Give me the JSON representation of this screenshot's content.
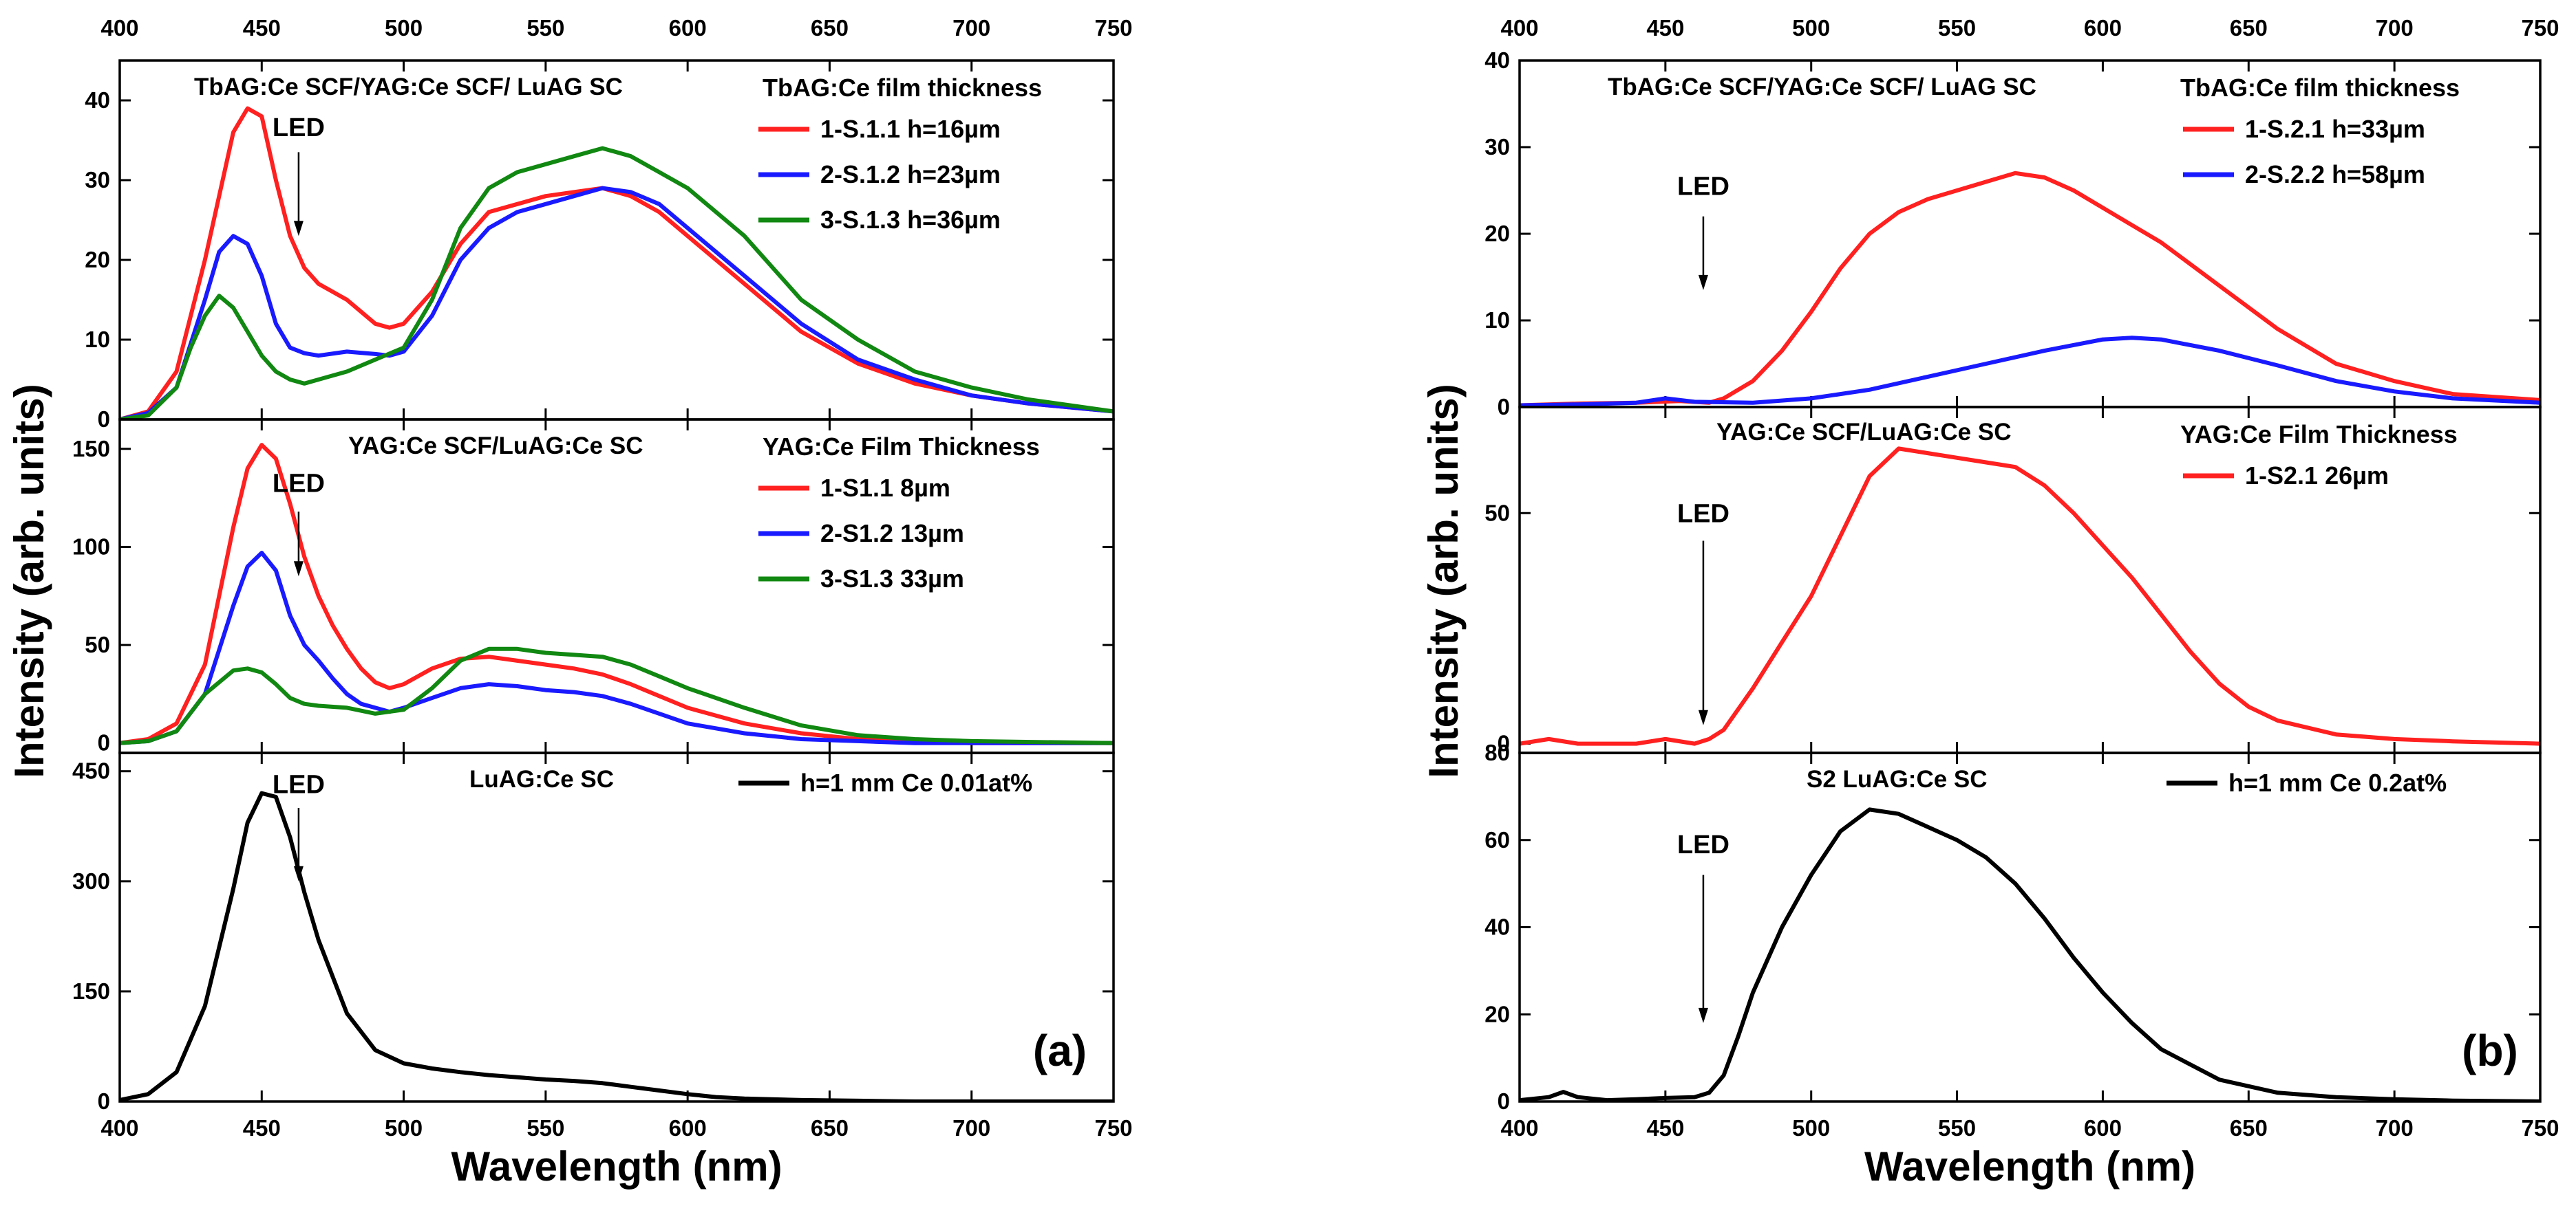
{
  "figure": {
    "xlabel": "Wavelength (nm)",
    "ylabel": "Intensity (arb. units)"
  },
  "colors": {
    "red": "#ff2020",
    "blue": "#1a1aff",
    "green": "#118811",
    "black": "#000000"
  },
  "chart_data": [
    {
      "panel": "a",
      "row": 0,
      "type": "line",
      "title": "TbAG:Ce SCF/YAG:Ce SCF/ LuAG SC",
      "legend_title": "TbAG:Ce film thickness",
      "xlim": [
        400,
        750
      ],
      "ylim": [
        0,
        45
      ],
      "xticks": [
        400,
        450,
        500,
        550,
        600,
        650,
        700,
        750
      ],
      "yticks": [
        0,
        10,
        20,
        30,
        40
      ],
      "yticklabels": [
        "0",
        "10",
        "20",
        "30",
        "40"
      ],
      "led": {
        "label": "LED",
        "x": 463,
        "y_text": 35.5,
        "y_start": 33.5,
        "y_end": 23
      },
      "series": [
        {
          "name": "1-S.1.1 h=16µm",
          "color": "red",
          "x": [
            400,
            410,
            420,
            430,
            440,
            445,
            450,
            455,
            460,
            465,
            470,
            480,
            490,
            495,
            500,
            510,
            520,
            530,
            540,
            550,
            560,
            570,
            580,
            590,
            600,
            620,
            640,
            660,
            680,
            700,
            720,
            750
          ],
          "y": [
            0,
            1,
            6,
            20,
            36,
            39,
            38,
            30,
            23,
            19,
            17,
            15,
            12,
            11.5,
            12,
            16,
            22,
            26,
            27,
            28,
            28.5,
            29,
            28,
            26,
            23,
            17,
            11,
            7,
            4.5,
            3,
            2,
            1
          ]
        },
        {
          "name": "2-S.1.2 h=23µm",
          "color": "blue",
          "x": [
            400,
            410,
            420,
            430,
            435,
            440,
            445,
            450,
            455,
            460,
            465,
            470,
            480,
            490,
            495,
            500,
            510,
            520,
            530,
            540,
            550,
            560,
            570,
            580,
            590,
            600,
            620,
            640,
            660,
            680,
            700,
            720,
            750
          ],
          "y": [
            0,
            0.8,
            4,
            15,
            21,
            23,
            22,
            18,
            12,
            9,
            8.3,
            8,
            8.5,
            8.2,
            8,
            8.5,
            13,
            20,
            24,
            26,
            27,
            28,
            29,
            28.5,
            27,
            24,
            18,
            12,
            7.5,
            5,
            3,
            2,
            1
          ]
        },
        {
          "name": "3-S.1.3 h=36µm",
          "color": "green",
          "x": [
            400,
            410,
            420,
            425,
            430,
            435,
            440,
            445,
            450,
            455,
            460,
            465,
            470,
            480,
            490,
            500,
            510,
            520,
            530,
            540,
            550,
            560,
            570,
            580,
            590,
            600,
            620,
            640,
            660,
            680,
            700,
            720,
            750
          ],
          "y": [
            0,
            0.5,
            4,
            9,
            13,
            15.5,
            14,
            11,
            8,
            6,
            5,
            4.5,
            5,
            6,
            7.5,
            9,
            15,
            24,
            29,
            31,
            32,
            33,
            34,
            33,
            31,
            29,
            23,
            15,
            10,
            6,
            4,
            2.5,
            1
          ]
        }
      ]
    },
    {
      "panel": "a",
      "row": 1,
      "type": "line",
      "title": "YAG:Ce SCF/LuAG:Ce SC",
      "legend_title": "YAG:Ce Film Thickness",
      "xlim": [
        400,
        750
      ],
      "ylim": [
        -5,
        165
      ],
      "xticks": [
        400,
        450,
        500,
        550,
        600,
        650,
        700,
        750
      ],
      "yticks": [
        0,
        50,
        100,
        150
      ],
      "yticklabels": [
        "0",
        "50",
        "100",
        "150"
      ],
      "led": {
        "label": "LED",
        "x": 463,
        "y_text": 128,
        "y_start": 118,
        "y_end": 85
      },
      "series": [
        {
          "name": "1-S1.1  8µm",
          "color": "red",
          "x": [
            400,
            410,
            420,
            430,
            440,
            445,
            450,
            455,
            460,
            465,
            470,
            475,
            480,
            485,
            490,
            495,
            500,
            510,
            520,
            530,
            540,
            550,
            560,
            570,
            580,
            590,
            600,
            620,
            640,
            660,
            680,
            700,
            750
          ],
          "y": [
            0,
            2,
            10,
            40,
            110,
            140,
            152,
            145,
            122,
            95,
            75,
            60,
            48,
            38,
            31,
            28,
            30,
            38,
            43,
            44,
            42,
            40,
            38,
            35,
            30,
            24,
            18,
            10,
            5,
            2,
            1,
            0,
            0
          ]
        },
        {
          "name": "2-S1.2  13µm",
          "color": "blue",
          "x": [
            400,
            410,
            420,
            430,
            440,
            445,
            450,
            455,
            460,
            465,
            470,
            475,
            480,
            485,
            490,
            495,
            500,
            510,
            520,
            530,
            540,
            550,
            560,
            570,
            580,
            590,
            600,
            620,
            640,
            660,
            680,
            750
          ],
          "y": [
            0,
            1,
            6,
            25,
            70,
            90,
            97,
            88,
            65,
            50,
            42,
            33,
            25,
            20,
            18,
            16,
            18,
            23,
            28,
            30,
            29,
            27,
            26,
            24,
            20,
            15,
            10,
            5,
            2,
            1,
            0,
            0
          ]
        },
        {
          "name": "3-S1.3  33µm",
          "color": "green",
          "x": [
            400,
            410,
            420,
            430,
            440,
            445,
            450,
            455,
            460,
            465,
            470,
            480,
            490,
            500,
            510,
            520,
            530,
            540,
            550,
            560,
            570,
            580,
            590,
            600,
            620,
            640,
            660,
            680,
            700,
            750
          ],
          "y": [
            0,
            1,
            6,
            25,
            37,
            38,
            36,
            30,
            23,
            20,
            19,
            18,
            15,
            17,
            28,
            42,
            48,
            48,
            46,
            45,
            44,
            40,
            34,
            28,
            18,
            9,
            4,
            2,
            1,
            0
          ]
        }
      ]
    },
    {
      "panel": "a",
      "row": 2,
      "type": "line",
      "title": "LuAG:Ce SC",
      "legend_title": "",
      "xlim": [
        400,
        750
      ],
      "ylim": [
        0,
        475
      ],
      "xticks": [
        400,
        450,
        500,
        550,
        600,
        650,
        700,
        750
      ],
      "yticks": [
        0,
        150,
        300,
        450
      ],
      "yticklabels": [
        "0",
        "150",
        "300",
        "450"
      ],
      "led": {
        "label": "LED",
        "x": 463,
        "y_text": 420,
        "y_start": 400,
        "y_end": 300
      },
      "series": [
        {
          "name": "h=1 mm Ce 0.01at%",
          "color": "black",
          "x": [
            400,
            410,
            420,
            430,
            440,
            445,
            450,
            455,
            460,
            465,
            470,
            480,
            490,
            500,
            510,
            520,
            530,
            540,
            550,
            560,
            570,
            580,
            590,
            600,
            610,
            620,
            640,
            660,
            680,
            700,
            750
          ],
          "y": [
            2,
            10,
            40,
            130,
            290,
            380,
            420,
            415,
            360,
            285,
            220,
            120,
            70,
            52,
            45,
            40,
            36,
            33,
            30,
            28,
            25,
            20,
            15,
            10,
            6,
            4,
            2,
            1,
            0,
            0,
            0
          ]
        }
      ]
    },
    {
      "panel": "b",
      "row": 0,
      "type": "line",
      "title": "TbAG:Ce SCF/YAG:Ce SCF/ LuAG SC",
      "legend_title": "TbAG:Ce film thickness",
      "xlim": [
        400,
        750
      ],
      "ylim": [
        0,
        40
      ],
      "xticks": [
        400,
        450,
        500,
        550,
        600,
        650,
        700,
        750
      ],
      "yticks": [
        0,
        10,
        20,
        30,
        40
      ],
      "yticklabels": [
        "0",
        "10",
        "20",
        "30",
        "40"
      ],
      "led": {
        "label": "LED",
        "x": 463,
        "y_text": 24.5,
        "y_start": 22,
        "y_end": 13.5
      },
      "series": [
        {
          "name": "1-S.2.1 h=33µm",
          "color": "red",
          "x": [
            400,
            420,
            440,
            455,
            465,
            470,
            480,
            490,
            500,
            510,
            520,
            530,
            540,
            550,
            560,
            570,
            580,
            590,
            600,
            610,
            620,
            640,
            660,
            680,
            700,
            720,
            750
          ],
          "y": [
            0.2,
            0.4,
            0.5,
            0.7,
            0.5,
            1,
            3,
            6.5,
            11,
            16,
            20,
            22.5,
            24,
            25,
            26,
            27,
            26.5,
            25,
            23,
            21,
            19,
            14,
            9,
            5,
            3,
            1.5,
            0.8
          ]
        },
        {
          "name": "2-S.2.2 h=58µm",
          "color": "blue",
          "x": [
            400,
            420,
            440,
            450,
            460,
            480,
            500,
            520,
            540,
            560,
            580,
            600,
            610,
            620,
            640,
            660,
            680,
            700,
            720,
            750
          ],
          "y": [
            0.2,
            0.3,
            0.5,
            1,
            0.6,
            0.5,
            1,
            2,
            3.5,
            5,
            6.5,
            7.8,
            8,
            7.8,
            6.5,
            4.8,
            3,
            1.8,
            1,
            0.5
          ]
        }
      ]
    },
    {
      "panel": "b",
      "row": 1,
      "type": "line",
      "title": "YAG:Ce SCF/LuAG:Ce SC",
      "legend_title": "YAG:Ce Film Thickness",
      "xlim": [
        400,
        750
      ],
      "ylim": [
        -2,
        73
      ],
      "xticks": [
        400,
        450,
        500,
        550,
        600,
        650,
        700,
        750
      ],
      "yticks": [
        0,
        50
      ],
      "yticklabels": [
        "0",
        "50"
      ],
      "led": {
        "label": "LED",
        "x": 463,
        "y_text": 48,
        "y_start": 44,
        "y_end": 4
      },
      "series": [
        {
          "name": "1-S2.1  26µm",
          "color": "red",
          "x": [
            400,
            410,
            420,
            430,
            440,
            450,
            460,
            465,
            470,
            480,
            490,
            500,
            510,
            520,
            530,
            540,
            550,
            560,
            570,
            580,
            590,
            600,
            610,
            620,
            630,
            640,
            650,
            660,
            680,
            700,
            720,
            750
          ],
          "y": [
            0,
            1,
            0,
            0,
            0,
            1,
            0,
            1,
            3,
            12,
            22,
            32,
            45,
            58,
            64,
            63,
            62,
            61,
            60,
            56,
            50,
            43,
            36,
            28,
            20,
            13,
            8,
            5,
            2,
            1,
            0.5,
            0
          ]
        }
      ]
    },
    {
      "panel": "b",
      "row": 2,
      "type": "line",
      "title": "S2 LuAG:Ce SC",
      "legend_title": "",
      "xlim": [
        400,
        750
      ],
      "ylim": [
        0,
        80
      ],
      "xticks": [
        400,
        450,
        500,
        550,
        600,
        650,
        700,
        750
      ],
      "yticks": [
        0,
        20,
        40,
        60,
        80
      ],
      "yticklabels": [
        "0",
        "20",
        "40",
        "60",
        "80"
      ],
      "led": {
        "label": "LED",
        "x": 463,
        "y_text": 57,
        "y_start": 52,
        "y_end": 18
      },
      "series": [
        {
          "name": "h=1 mm Ce 0.2at%",
          "color": "black",
          "x": [
            400,
            410,
            415,
            420,
            430,
            440,
            450,
            460,
            465,
            470,
            475,
            480,
            490,
            500,
            510,
            520,
            530,
            540,
            550,
            560,
            570,
            580,
            590,
            600,
            610,
            620,
            640,
            660,
            680,
            700,
            720,
            750
          ],
          "y": [
            0.3,
            1,
            2.2,
            1,
            0.3,
            0.5,
            0.8,
            1,
            2,
            6,
            15,
            25,
            40,
            52,
            62,
            67,
            66,
            63,
            60,
            56,
            50,
            42,
            33,
            25,
            18,
            12,
            5,
            2,
            1,
            0.5,
            0.2,
            0
          ]
        }
      ]
    }
  ],
  "panel_labels": [
    "(a)",
    "(b)"
  ]
}
